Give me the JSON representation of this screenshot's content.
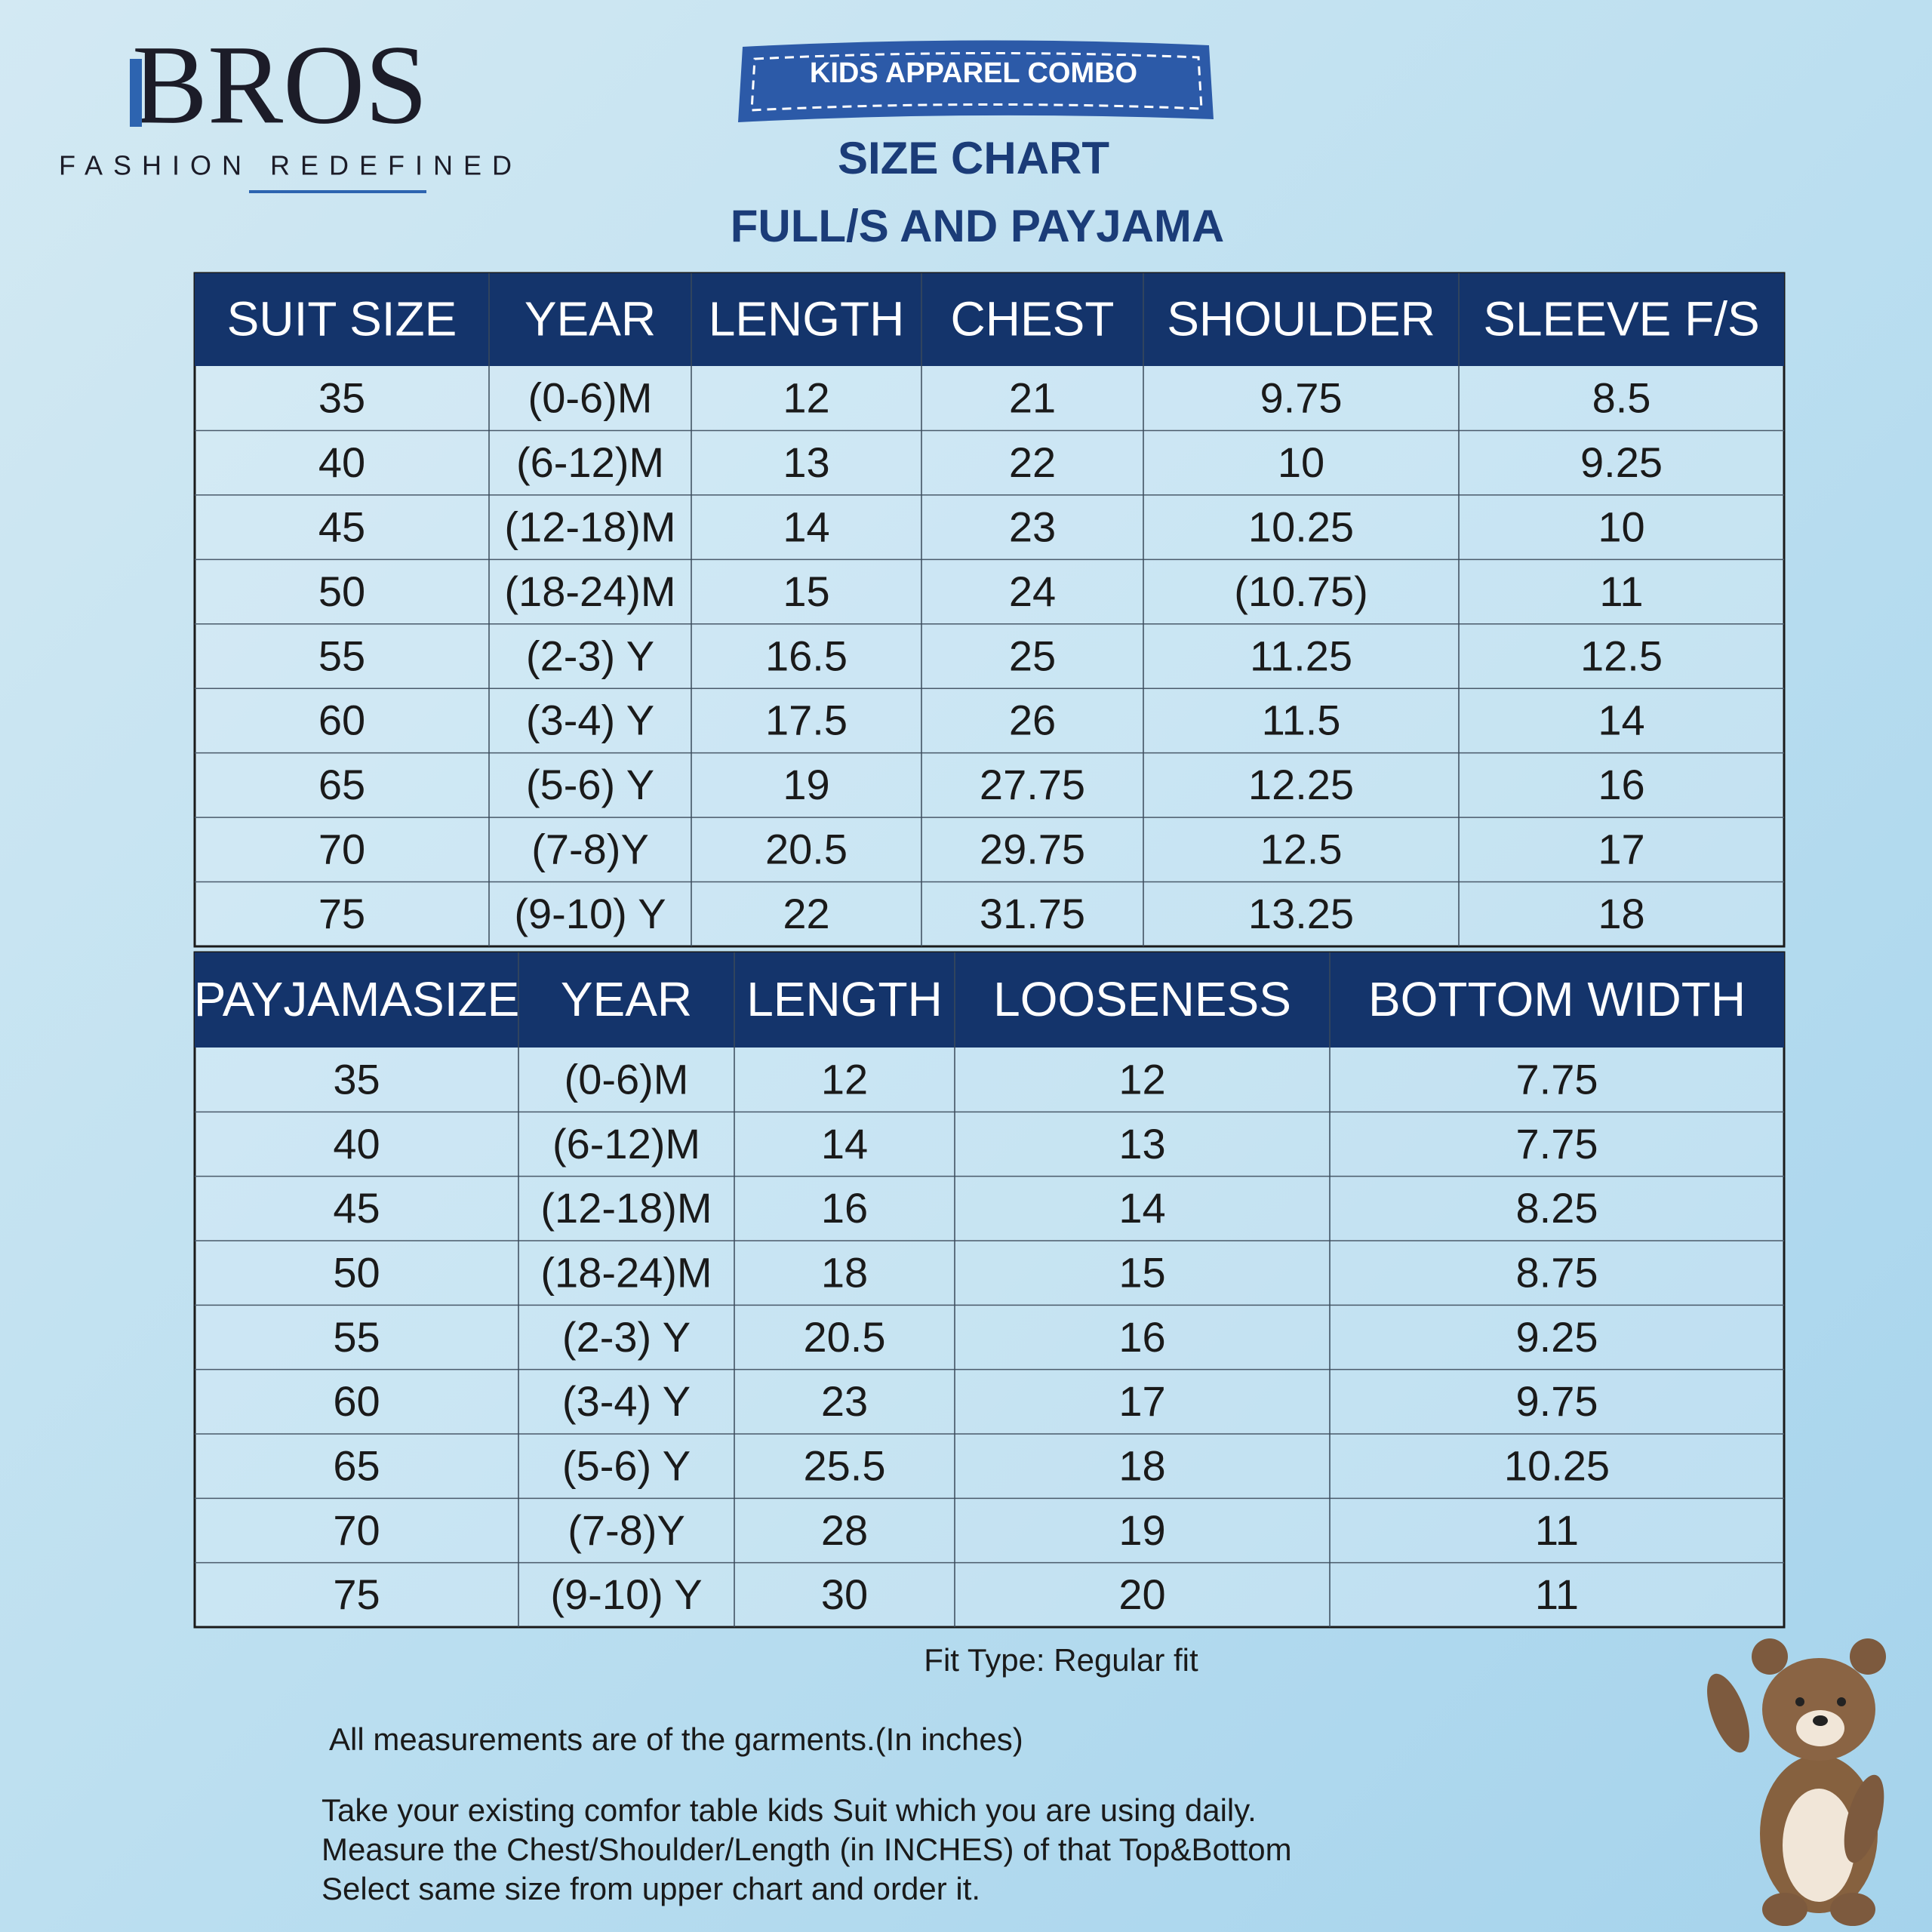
{
  "logo": {
    "brand": "BROS",
    "tagline": "FASHION REDEFINED"
  },
  "badge": "KIDS APPAREL COMBO",
  "title": [
    "SIZE CHART",
    "FULL/S  AND PAYJAMA"
  ],
  "suit_table": {
    "headers": [
      "SUIT SIZE",
      "YEAR",
      "LENGTH",
      "CHEST",
      "SHOULDER",
      "SLEEVE F/S"
    ],
    "rows": [
      [
        "35",
        "(0-6)M",
        "12",
        "21",
        "9.75",
        "8.5"
      ],
      [
        "40",
        "(6-12)M",
        "13",
        "22",
        "10",
        "9.25"
      ],
      [
        "45",
        "(12-18)M",
        "14",
        "23",
        "10.25",
        "10"
      ],
      [
        "50",
        "(18-24)M",
        "15",
        "24",
        "(10.75)",
        "11"
      ],
      [
        "55",
        "(2-3) Y",
        "16.5",
        "25",
        "11.25",
        "12.5"
      ],
      [
        "60",
        "(3-4) Y",
        "17.5",
        "26",
        "11.5",
        "14"
      ],
      [
        "65",
        "(5-6) Y",
        "19",
        "27.75",
        "12.25",
        "16"
      ],
      [
        "70",
        "(7-8)Y",
        "20.5",
        "29.75",
        "12.5",
        "17"
      ],
      [
        "75",
        "(9-10) Y",
        "22",
        "31.75",
        "13.25",
        "18"
      ]
    ]
  },
  "payjama_table": {
    "headers": [
      "PAYJAMASIZE",
      "YEAR",
      "LENGTH",
      "LOOSENESS",
      "BOTTOM WIDTH"
    ],
    "rows": [
      [
        "35",
        "(0-6)M",
        "12",
        "12",
        "7.75"
      ],
      [
        "40",
        "(6-12)M",
        "14",
        "13",
        "7.75"
      ],
      [
        "45",
        "(12-18)M",
        "16",
        "14",
        "8.25"
      ],
      [
        "50",
        "(18-24)M",
        "18",
        "15",
        "8.75"
      ],
      [
        "55",
        "(2-3) Y",
        "20.5",
        "16",
        "9.25"
      ],
      [
        "60",
        "(3-4) Y",
        "23",
        "17",
        "9.75"
      ],
      [
        "65",
        "(5-6) Y",
        "25.5",
        "18",
        "10.25"
      ],
      [
        "70",
        "(7-8)Y",
        "28",
        "19",
        "11"
      ],
      [
        "75",
        "(9-10) Y",
        "30",
        "20",
        "11"
      ]
    ]
  },
  "notes": {
    "fit_type": "Fit Type: Regular fit",
    "measurements": "All measurements are of the garments.(In inches)",
    "instructions": [
      "Take your existing comfor table kids Suit which you are using daily.",
      "Measure the Chest/Shoulder/Length (in INCHES) of that Top&Bottom",
      "Select same size from upper chart and order it."
    ]
  }
}
